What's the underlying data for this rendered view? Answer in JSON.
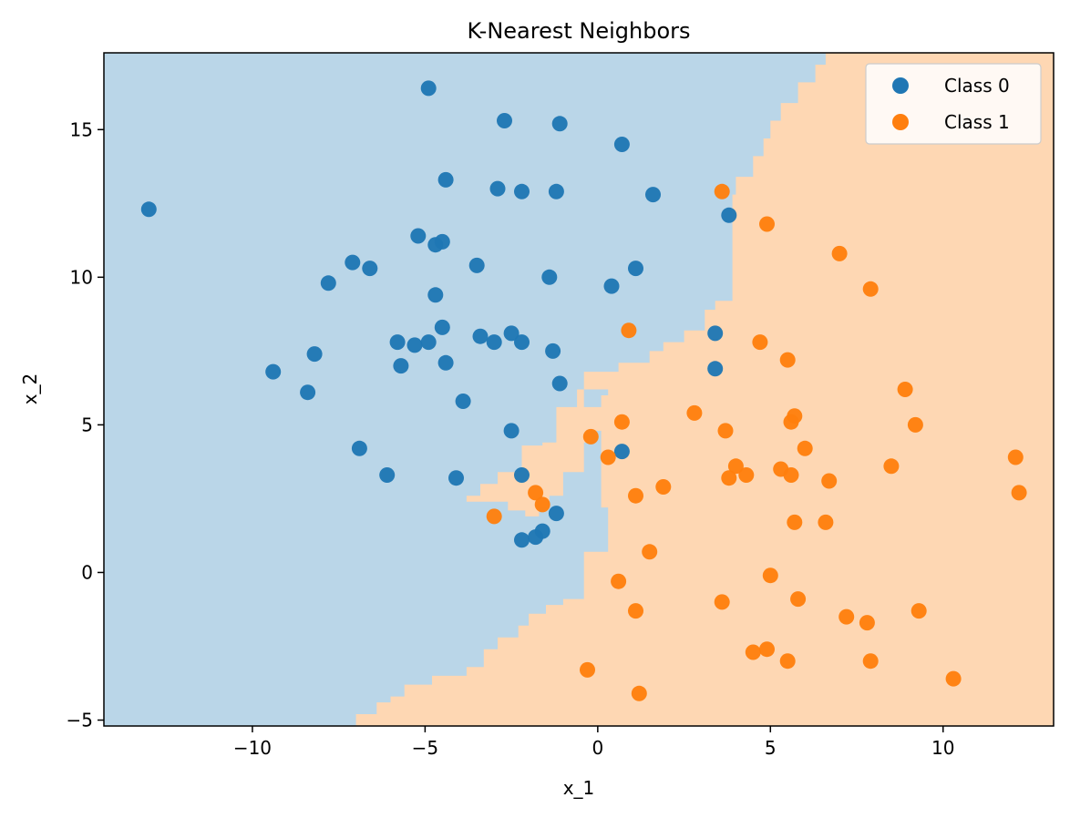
{
  "chart_data": {
    "type": "scatter",
    "title": "K-Nearest Neighbors",
    "xlabel": "x_1",
    "ylabel": "x_2",
    "xlim": [
      -14.3,
      13.2
    ],
    "ylim": [
      -5.2,
      17.6
    ],
    "xticks": [
      -10,
      -5,
      0,
      5,
      10
    ],
    "xtick_labels": [
      "−10",
      "−5",
      "0",
      "5",
      "10"
    ],
    "yticks": [
      -5,
      0,
      5,
      10,
      15
    ],
    "ytick_labels": [
      "−5",
      "0",
      "5",
      "10",
      "15"
    ],
    "grid": false,
    "legend_position": "top-right",
    "colors": {
      "class0_point": "#1f77b4",
      "class1_point": "#ff7f0e",
      "class0_region": "#bad6e8",
      "class1_region": "#fed7b3"
    },
    "decision_boundary_class0_region": [
      [
        -14.3,
        17.6
      ],
      [
        6.6,
        17.6
      ],
      [
        6.6,
        17.2
      ],
      [
        6.3,
        17.2
      ],
      [
        6.3,
        16.6
      ],
      [
        5.8,
        16.6
      ],
      [
        5.8,
        15.9
      ],
      [
        5.3,
        15.9
      ],
      [
        5.3,
        15.3
      ],
      [
        5.0,
        15.3
      ],
      [
        5.0,
        14.7
      ],
      [
        4.8,
        14.7
      ],
      [
        4.8,
        14.1
      ],
      [
        4.5,
        14.1
      ],
      [
        4.5,
        13.4
      ],
      [
        4.0,
        13.4
      ],
      [
        4.0,
        12.8
      ],
      [
        3.9,
        12.8
      ],
      [
        3.9,
        10.0
      ],
      [
        3.9,
        9.2
      ],
      [
        3.4,
        9.2
      ],
      [
        3.4,
        8.9
      ],
      [
        3.1,
        8.9
      ],
      [
        3.1,
        8.2
      ],
      [
        2.5,
        8.2
      ],
      [
        2.5,
        7.8
      ],
      [
        1.9,
        7.8
      ],
      [
        1.9,
        7.5
      ],
      [
        1.5,
        7.5
      ],
      [
        1.5,
        7.1
      ],
      [
        0.6,
        7.1
      ],
      [
        0.6,
        6.8
      ],
      [
        -0.4,
        6.8
      ],
      [
        -0.4,
        6.2
      ],
      [
        -0.6,
        6.2
      ],
      [
        -0.6,
        5.6
      ],
      [
        -1.2,
        5.6
      ],
      [
        -1.2,
        4.4
      ],
      [
        -1.6,
        4.4
      ],
      [
        -1.6,
        4.3
      ],
      [
        -2.2,
        4.3
      ],
      [
        -2.2,
        3.4
      ],
      [
        -2.9,
        3.4
      ],
      [
        -2.9,
        3.0
      ],
      [
        -3.4,
        3.0
      ],
      [
        -3.4,
        2.6
      ],
      [
        -3.8,
        2.6
      ],
      [
        -3.8,
        2.4
      ],
      [
        -2.6,
        2.4
      ],
      [
        -2.6,
        2.1
      ],
      [
        -2.1,
        2.1
      ],
      [
        -2.1,
        1.9
      ],
      [
        -1.7,
        1.9
      ],
      [
        -1.7,
        2.2
      ],
      [
        -1.4,
        2.2
      ],
      [
        -1.4,
        2.6
      ],
      [
        -1.0,
        2.6
      ],
      [
        -1.0,
        3.4
      ],
      [
        -0.4,
        3.4
      ],
      [
        -0.4,
        4.4
      ],
      [
        -0.2,
        4.4
      ],
      [
        -0.2,
        4.8
      ],
      [
        0.1,
        4.8
      ],
      [
        0.1,
        5.6
      ],
      [
        -0.4,
        5.6
      ],
      [
        -0.4,
        6.2
      ],
      [
        0.3,
        6.2
      ],
      [
        0.3,
        6.0
      ],
      [
        0.1,
        6.0
      ],
      [
        0.1,
        5.6
      ],
      [
        0.1,
        2.2
      ],
      [
        0.3,
        2.2
      ],
      [
        0.3,
        0.7
      ],
      [
        -0.4,
        0.7
      ],
      [
        -0.4,
        -0.9
      ],
      [
        -1.0,
        -0.9
      ],
      [
        -1.0,
        -1.1
      ],
      [
        -1.5,
        -1.1
      ],
      [
        -1.5,
        -1.4
      ],
      [
        -2.0,
        -1.4
      ],
      [
        -2.0,
        -1.8
      ],
      [
        -2.3,
        -1.8
      ],
      [
        -2.3,
        -2.2
      ],
      [
        -2.9,
        -2.2
      ],
      [
        -2.9,
        -2.6
      ],
      [
        -3.3,
        -2.6
      ],
      [
        -3.3,
        -3.2
      ],
      [
        -3.8,
        -3.2
      ],
      [
        -3.8,
        -3.5
      ],
      [
        -4.8,
        -3.5
      ],
      [
        -4.8,
        -3.8
      ],
      [
        -5.6,
        -3.8
      ],
      [
        -5.6,
        -4.2
      ],
      [
        -6.0,
        -4.2
      ],
      [
        -6.0,
        -4.4
      ],
      [
        -6.4,
        -4.4
      ],
      [
        -6.4,
        -4.8
      ],
      [
        -7.0,
        -4.8
      ],
      [
        -7.0,
        -5.2
      ],
      [
        -14.3,
        -5.2
      ]
    ],
    "series": [
      {
        "name": "Class 0",
        "points": [
          [
            -13.0,
            12.3
          ],
          [
            -4.9,
            16.4
          ],
          [
            -2.7,
            15.3
          ],
          [
            -1.1,
            15.2
          ],
          [
            0.7,
            14.5
          ],
          [
            -4.4,
            13.3
          ],
          [
            -2.9,
            13.0
          ],
          [
            -2.2,
            12.9
          ],
          [
            -1.2,
            12.9
          ],
          [
            1.6,
            12.8
          ],
          [
            3.8,
            12.1
          ],
          [
            -5.2,
            11.4
          ],
          [
            -4.7,
            11.1
          ],
          [
            -4.5,
            11.2
          ],
          [
            -7.1,
            10.5
          ],
          [
            -6.6,
            10.3
          ],
          [
            -3.5,
            10.4
          ],
          [
            -7.8,
            9.8
          ],
          [
            -1.4,
            10.0
          ],
          [
            1.1,
            10.3
          ],
          [
            0.4,
            9.7
          ],
          [
            -4.7,
            9.4
          ],
          [
            -4.5,
            8.3
          ],
          [
            -3.4,
            8.0
          ],
          [
            -2.5,
            8.1
          ],
          [
            -3.0,
            7.8
          ],
          [
            -2.2,
            7.8
          ],
          [
            -5.8,
            7.8
          ],
          [
            -5.3,
            7.7
          ],
          [
            -4.9,
            7.8
          ],
          [
            -8.2,
            7.4
          ],
          [
            -1.3,
            7.5
          ],
          [
            -9.4,
            6.8
          ],
          [
            -5.7,
            7.0
          ],
          [
            -4.4,
            7.1
          ],
          [
            3.4,
            8.1
          ],
          [
            3.4,
            6.9
          ],
          [
            -1.1,
            6.4
          ],
          [
            -8.4,
            6.1
          ],
          [
            -3.9,
            5.8
          ],
          [
            -2.5,
            4.8
          ],
          [
            -6.9,
            4.2
          ],
          [
            0.7,
            4.1
          ],
          [
            -6.1,
            3.3
          ],
          [
            -4.1,
            3.2
          ],
          [
            -2.2,
            3.3
          ],
          [
            -1.2,
            2.0
          ],
          [
            -1.6,
            1.4
          ],
          [
            -1.8,
            1.2
          ],
          [
            -2.2,
            1.1
          ]
        ]
      },
      {
        "name": "Class 1",
        "points": [
          [
            3.6,
            12.9
          ],
          [
            4.9,
            11.8
          ],
          [
            7.0,
            10.8
          ],
          [
            7.9,
            9.6
          ],
          [
            0.9,
            8.2
          ],
          [
            4.7,
            7.8
          ],
          [
            5.5,
            7.2
          ],
          [
            8.9,
            6.2
          ],
          [
            2.8,
            5.4
          ],
          [
            0.7,
            5.1
          ],
          [
            -0.2,
            4.6
          ],
          [
            3.7,
            4.8
          ],
          [
            5.7,
            5.3
          ],
          [
            5.6,
            5.1
          ],
          [
            9.2,
            5.0
          ],
          [
            6.0,
            4.2
          ],
          [
            0.3,
            3.9
          ],
          [
            4.0,
            3.6
          ],
          [
            5.3,
            3.5
          ],
          [
            4.3,
            3.3
          ],
          [
            3.8,
            3.2
          ],
          [
            5.6,
            3.3
          ],
          [
            6.7,
            3.1
          ],
          [
            8.5,
            3.6
          ],
          [
            12.1,
            3.9
          ],
          [
            12.2,
            2.7
          ],
          [
            1.1,
            2.6
          ],
          [
            1.9,
            2.9
          ],
          [
            -1.8,
            2.7
          ],
          [
            -1.6,
            2.3
          ],
          [
            -3.0,
            1.9
          ],
          [
            5.7,
            1.7
          ],
          [
            6.6,
            1.7
          ],
          [
            1.5,
            0.7
          ],
          [
            0.6,
            -0.3
          ],
          [
            5.0,
            -0.1
          ],
          [
            3.6,
            -1.0
          ],
          [
            5.8,
            -0.9
          ],
          [
            1.1,
            -1.3
          ],
          [
            7.2,
            -1.5
          ],
          [
            7.8,
            -1.7
          ],
          [
            9.3,
            -1.3
          ],
          [
            4.5,
            -2.7
          ],
          [
            4.9,
            -2.6
          ],
          [
            5.5,
            -3.0
          ],
          [
            7.9,
            -3.0
          ],
          [
            -0.3,
            -3.3
          ],
          [
            1.2,
            -4.1
          ],
          [
            10.3,
            -3.6
          ]
        ]
      }
    ],
    "legend": {
      "entries": [
        "Class 0",
        "Class 1"
      ]
    }
  }
}
